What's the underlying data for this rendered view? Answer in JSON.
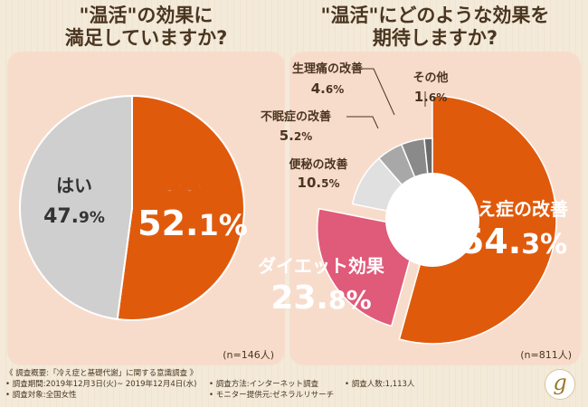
{
  "titles": {
    "left_line1": "\"温活\"の効果に",
    "left_line2": "満足していますか?",
    "right_line1": "\"温活\"にどのような効果を",
    "right_line2": "期待しますか?"
  },
  "colors": {
    "orange": "#e05a0c",
    "gray": "#cfcfcf",
    "pink": "#e05a7a",
    "lightgray": "#e0e0e0",
    "midgray": "#a8a8a8",
    "darkgray": "#8a8a8a",
    "darkestgray": "#6a6a6a"
  },
  "chart_data": [
    {
      "type": "pie",
      "title": "\"温活\"の効果に満足していますか?",
      "n_label": "(n=146人)",
      "slices": [
        {
          "label": "いいえ",
          "value": 52.1,
          "display": "52.1%"
        },
        {
          "label": "はい",
          "value": 47.9,
          "display": "47.9%"
        }
      ]
    },
    {
      "type": "pie",
      "title": "\"温活\"にどのような効果を期待しますか?",
      "n_label": "(n=811人)",
      "slices": [
        {
          "label": "冷え症の改善",
          "value": 54.3,
          "display": "54.3%"
        },
        {
          "label": "ダイエット効果",
          "value": 23.8,
          "display": "23.8%"
        },
        {
          "label": "便秘の改善",
          "value": 10.5,
          "display": "10.5%"
        },
        {
          "label": "不眠症の改善",
          "value": 5.2,
          "display": "5.2%"
        },
        {
          "label": "生理痛の改善",
          "value": 4.6,
          "display": "4.6%"
        },
        {
          "label": "その他",
          "value": 1.6,
          "display": "1.6%"
        }
      ]
    }
  ],
  "footnote": {
    "line1": "《 調査概要:「冷え症と基礎代謝」に関する意識調査 》",
    "period": "• 調査期間:2019年12月3日(火)~ 2019年12月4日(水)",
    "method": "• 調査方法:インターネット調査",
    "count": "• 調査人数:1,113人",
    "target": "• 調査対象:全国女性",
    "provider": "• モニター提供元:ゼネラルリサーチ"
  },
  "logo_glyph": "g"
}
